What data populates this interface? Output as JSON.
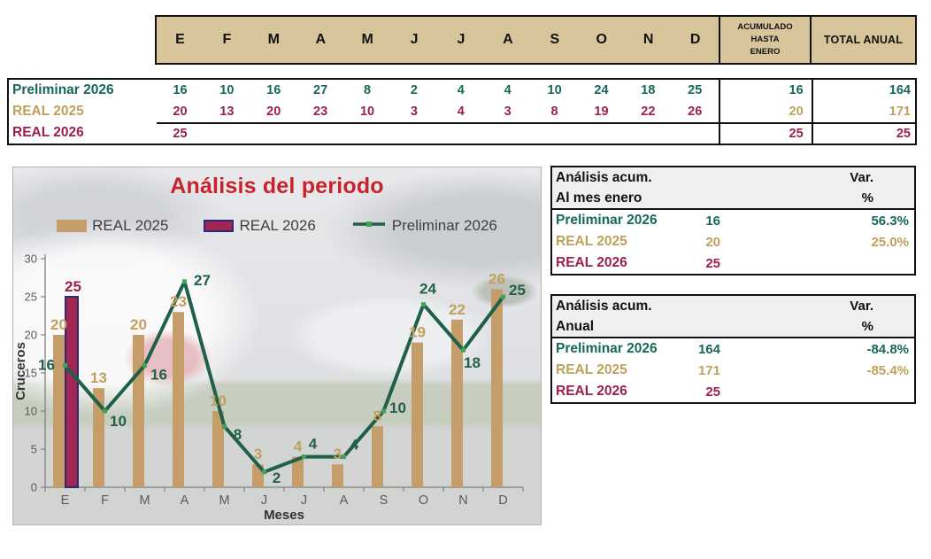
{
  "colors": {
    "teal": "#17685A",
    "tan": "#BFA05C",
    "maroon": "#9C1F4E",
    "bar_tan": "#C49D6B",
    "bar_maroon": "#A02653",
    "bar_maroon_border": "#2E2A72",
    "line_green": "#1F6048",
    "marker_green": "#3FA455",
    "title_red": "#C8232C",
    "header_bg": "#D9C59C"
  },
  "header_table": {
    "months": [
      "E",
      "F",
      "M",
      "A",
      "M",
      "J",
      "J",
      "A",
      "S",
      "O",
      "N",
      "D"
    ],
    "acumulado_label": "ACUMULADO\nHASTA\nENERO",
    "total_label": "TOTAL ANUAL"
  },
  "data_table": {
    "rows": [
      {
        "label": "Preliminar 2026",
        "label_color": "teal",
        "value_color": "teal",
        "summary_color": "teal",
        "values": [
          "16",
          "10",
          "16",
          "27",
          "8",
          "2",
          "4",
          "4",
          "10",
          "24",
          "18",
          "25"
        ],
        "acumulado": "16",
        "total": "164"
      },
      {
        "label": "REAL 2025",
        "label_color": "tan",
        "value_color": "maroon",
        "summary_color": "tan",
        "values": [
          "20",
          "13",
          "20",
          "23",
          "10",
          "3",
          "4",
          "3",
          "8",
          "19",
          "22",
          "26"
        ],
        "acumulado": "20",
        "total": "171"
      },
      {
        "label": "REAL 2026",
        "label_color": "maroon",
        "value_color": "maroon",
        "summary_color": "maroon",
        "values": [
          "25",
          "",
          "",
          "",
          "",
          "",
          "",
          "",
          "",
          "",
          "",
          ""
        ],
        "acumulado": "25",
        "total": "25"
      }
    ]
  },
  "chart_data": {
    "type": "combo",
    "title": "Análisis del periodo",
    "xlabel": "Meses",
    "ylabel": "Cruceros",
    "ylim": [
      0,
      30
    ],
    "yticks": [
      0,
      5,
      10,
      15,
      20,
      25,
      30
    ],
    "categories": [
      "E",
      "F",
      "M",
      "A",
      "M",
      "J",
      "J",
      "A",
      "S",
      "O",
      "N",
      "D"
    ],
    "legend_position": "top",
    "series": [
      {
        "name": "REAL 2025",
        "type": "bar",
        "color": "bar_tan",
        "label_color": "tan",
        "values": [
          20,
          13,
          20,
          23,
          10,
          3,
          4,
          3,
          8,
          19,
          22,
          26
        ]
      },
      {
        "name": "REAL 2026",
        "type": "bar",
        "color": "bar_maroon",
        "border_color": "bar_maroon_border",
        "label_color": "maroon",
        "values": [
          25,
          null,
          null,
          null,
          null,
          null,
          null,
          null,
          null,
          null,
          null,
          null
        ]
      },
      {
        "name": "Preliminar 2026",
        "type": "line",
        "color": "line_green",
        "marker_color": "marker_green",
        "label_color": "line_green",
        "values": [
          16,
          10,
          16,
          27,
          8,
          2,
          4,
          4,
          10,
          24,
          18,
          25
        ]
      }
    ]
  },
  "analysis_tables": [
    {
      "title_line1": "Análisis acum.",
      "title_line2": "Al mes enero",
      "var_label": "Var.",
      "pct_label": "%",
      "rows": [
        {
          "label": "Preliminar 2026",
          "value": "16",
          "pct": "56.3%",
          "color": "teal"
        },
        {
          "label": "REAL 2025",
          "value": "20",
          "pct": "25.0%",
          "color": "tan"
        },
        {
          "label": "REAL 2026",
          "value": "25",
          "pct": "",
          "color": "maroon"
        }
      ]
    },
    {
      "title_line1": "Análisis acum.",
      "title_line2": "Anual",
      "var_label": "Var.",
      "pct_label": "%",
      "rows": [
        {
          "label": "Preliminar 2026",
          "value": "164",
          "pct": "-84.8%",
          "color": "teal"
        },
        {
          "label": "REAL 2025",
          "value": "171",
          "pct": "-85.4%",
          "color": "tan"
        },
        {
          "label": "REAL 2026",
          "value": "25",
          "pct": "",
          "color": "maroon"
        }
      ]
    }
  ]
}
